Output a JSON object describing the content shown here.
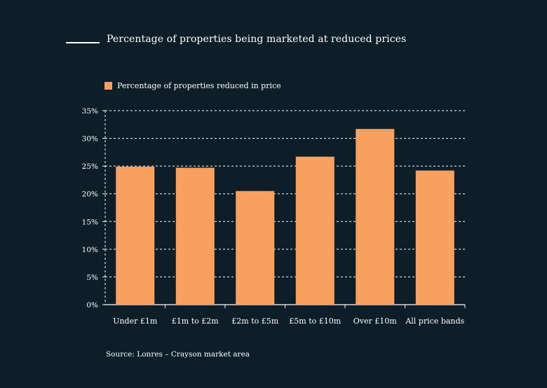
{
  "chart_data": {
    "type": "bar",
    "title": "Percentage of properties being marketed at reduced prices",
    "categories": [
      "Under £1m",
      "£1m to £2m",
      "£2m to £5m",
      "£5m to £10m",
      "Over £10m",
      "All price bands"
    ],
    "series": [
      {
        "name": "Percentage of properties reduced in price",
        "values": [
          24.9,
          24.7,
          20.5,
          26.7,
          31.7,
          24.2
        ]
      }
    ],
    "y_ticks": [
      "0%",
      "5%",
      "10%",
      "15%",
      "20%",
      "25%",
      "30%",
      "35%"
    ],
    "ylim": [
      0,
      35
    ],
    "grid": true,
    "legend_position": "top-left",
    "colors": {
      "bar": "#f7a05f",
      "background": "#0d1e29",
      "text": "#ffffff"
    }
  },
  "source": "Source: Lonres – Crayson market area"
}
